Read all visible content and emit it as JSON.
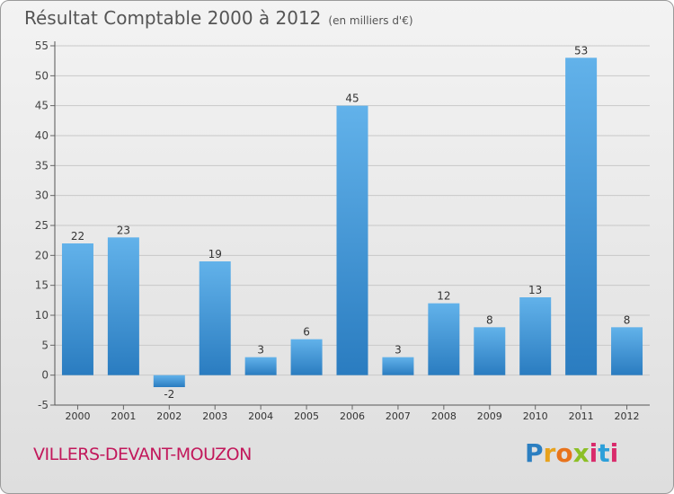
{
  "header": {
    "title": "Résultat Comptable 2000 à 2012",
    "subtitle": "(en milliers d'€)"
  },
  "footer": {
    "town": "VILLERS-DEVANT-MOUZON",
    "logo_letters": [
      "P",
      "r",
      "o",
      "x",
      "i",
      "t",
      "i"
    ]
  },
  "colors": {
    "bar_top": "#62b2ea",
    "bar_bottom": "#2a7cc0",
    "grid": "#c8c8c8",
    "town": "#c2185b"
  },
  "chart_data": {
    "type": "bar",
    "title": "Résultat Comptable 2000 à 2012",
    "subtitle": "(en milliers d'€)",
    "categories": [
      "2000",
      "2001",
      "2002",
      "2003",
      "2004",
      "2005",
      "2006",
      "2007",
      "2008",
      "2009",
      "2010",
      "2011",
      "2012"
    ],
    "values": [
      22,
      23,
      -2,
      19,
      3,
      6,
      45,
      3,
      12,
      8,
      13,
      53,
      8
    ],
    "data_labels": [
      "22",
      "23",
      "-2",
      "19",
      "3",
      "6",
      "45",
      "3",
      "12",
      "8",
      "13",
      "53",
      "8"
    ],
    "yticks": [
      -5,
      0,
      5,
      10,
      15,
      20,
      25,
      30,
      35,
      40,
      45,
      50,
      55
    ],
    "ylim": [
      -5,
      55
    ],
    "grid": true
  }
}
